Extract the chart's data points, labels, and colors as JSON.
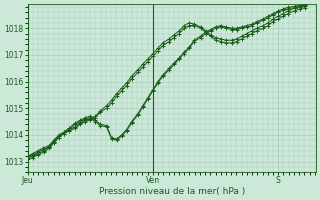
{
  "xlabel": "Pression niveau de la mer( hPa )",
  "bg_color": "#cce8d8",
  "plot_bg_color": "#cce8d8",
  "grid_color": "#aacabc",
  "line_color": "#1a5c1a",
  "ylim": [
    1012.6,
    1018.9
  ],
  "xlim_days": 2.3,
  "yticks": [
    1013,
    1014,
    1015,
    1016,
    1017,
    1018
  ],
  "xtick_labels": [
    "Jeu",
    "Ven",
    "S"
  ],
  "xtick_positions": [
    0,
    1.0,
    2.0
  ],
  "vline_positions": [
    0,
    1.0
  ],
  "series": [
    {
      "x": [
        0.0,
        0.04,
        0.08,
        0.12,
        0.17,
        0.21,
        0.25,
        0.29,
        0.33,
        0.38,
        0.42,
        0.46,
        0.5,
        0.54,
        0.58,
        0.63,
        0.67,
        0.71,
        0.75,
        0.79,
        0.83,
        0.88,
        0.92,
        0.96,
        1.0,
        1.04,
        1.08,
        1.13,
        1.17,
        1.21,
        1.25,
        1.29,
        1.33,
        1.38,
        1.42,
        1.46,
        1.5,
        1.54,
        1.58,
        1.63,
        1.67,
        1.71,
        1.75,
        1.79,
        1.83,
        1.88,
        1.92,
        1.96,
        2.0,
        2.04,
        2.08,
        2.13,
        2.17,
        2.21
      ],
      "y": [
        1013.2,
        1013.3,
        1013.4,
        1013.5,
        1013.6,
        1013.8,
        1014.0,
        1014.1,
        1014.2,
        1014.3,
        1014.45,
        1014.55,
        1014.6,
        1014.7,
        1014.9,
        1015.1,
        1015.3,
        1015.55,
        1015.75,
        1015.95,
        1016.2,
        1016.45,
        1016.65,
        1016.85,
        1017.05,
        1017.25,
        1017.45,
        1017.6,
        1017.75,
        1017.9,
        1018.1,
        1018.2,
        1018.15,
        1018.05,
        1017.9,
        1017.75,
        1017.65,
        1017.6,
        1017.55,
        1017.55,
        1017.6,
        1017.7,
        1017.8,
        1017.9,
        1018.0,
        1018.1,
        1018.2,
        1018.35,
        1018.45,
        1018.55,
        1018.65,
        1018.75,
        1018.82,
        1018.87
      ]
    },
    {
      "x": [
        0.0,
        0.04,
        0.08,
        0.12,
        0.17,
        0.21,
        0.25,
        0.29,
        0.33,
        0.38,
        0.42,
        0.46,
        0.5,
        0.54,
        0.58,
        0.63,
        0.67,
        0.71,
        0.75,
        0.79,
        0.83,
        0.88,
        0.92,
        0.96,
        1.0,
        1.04,
        1.08,
        1.13,
        1.17,
        1.21,
        1.25,
        1.29,
        1.33,
        1.38,
        1.42,
        1.46,
        1.5,
        1.54,
        1.58,
        1.63,
        1.67,
        1.71,
        1.75,
        1.79,
        1.83,
        1.88,
        1.92,
        1.96,
        2.0,
        2.04,
        2.08,
        2.13,
        2.17,
        2.21
      ],
      "y": [
        1013.2,
        1013.25,
        1013.35,
        1013.45,
        1013.55,
        1013.75,
        1013.95,
        1014.05,
        1014.15,
        1014.25,
        1014.4,
        1014.5,
        1014.55,
        1014.65,
        1014.85,
        1015.0,
        1015.2,
        1015.45,
        1015.65,
        1015.85,
        1016.1,
        1016.35,
        1016.55,
        1016.75,
        1016.95,
        1017.15,
        1017.35,
        1017.5,
        1017.65,
        1017.8,
        1018.0,
        1018.1,
        1018.1,
        1018.0,
        1017.85,
        1017.7,
        1017.55,
        1017.5,
        1017.45,
        1017.45,
        1017.5,
        1017.6,
        1017.7,
        1017.8,
        1017.9,
        1018.0,
        1018.1,
        1018.25,
        1018.35,
        1018.45,
        1018.55,
        1018.65,
        1018.72,
        1018.77
      ]
    },
    {
      "x": [
        0.0,
        0.04,
        0.08,
        0.13,
        0.17,
        0.21,
        0.25,
        0.29,
        0.33,
        0.38,
        0.42,
        0.46,
        0.5,
        0.54,
        0.58,
        0.63,
        0.67,
        0.71,
        0.75,
        0.79,
        0.83,
        0.88,
        0.92,
        0.96,
        1.0,
        1.04,
        1.08,
        1.13,
        1.17,
        1.21,
        1.25,
        1.29,
        1.33,
        1.38,
        1.42,
        1.46,
        1.5,
        1.54,
        1.58,
        1.63,
        1.67,
        1.71,
        1.75,
        1.79,
        1.83,
        1.88,
        1.92,
        1.96,
        2.0,
        2.04,
        2.08,
        2.13,
        2.17,
        2.21
      ],
      "y": [
        1013.15,
        1013.2,
        1013.3,
        1013.4,
        1013.55,
        1013.75,
        1013.95,
        1014.1,
        1014.25,
        1014.45,
        1014.55,
        1014.65,
        1014.7,
        1014.55,
        1014.4,
        1014.35,
        1013.9,
        1013.85,
        1014.0,
        1014.2,
        1014.5,
        1014.8,
        1015.1,
        1015.4,
        1015.7,
        1016.0,
        1016.25,
        1016.5,
        1016.7,
        1016.9,
        1017.1,
        1017.3,
        1017.55,
        1017.7,
        1017.85,
        1017.95,
        1018.05,
        1018.1,
        1018.05,
        1018.0,
        1018.0,
        1018.05,
        1018.1,
        1018.15,
        1018.25,
        1018.35,
        1018.45,
        1018.55,
        1018.65,
        1018.72,
        1018.78,
        1018.82,
        1018.85,
        1018.88
      ]
    },
    {
      "x": [
        0.0,
        0.04,
        0.08,
        0.13,
        0.17,
        0.21,
        0.25,
        0.29,
        0.33,
        0.38,
        0.42,
        0.46,
        0.5,
        0.54,
        0.58,
        0.63,
        0.67,
        0.71,
        0.75,
        0.79,
        0.83,
        0.88,
        0.92,
        0.96,
        1.0,
        1.04,
        1.08,
        1.13,
        1.17,
        1.21,
        1.25,
        1.29,
        1.33,
        1.38,
        1.42,
        1.46,
        1.5,
        1.54,
        1.58,
        1.63,
        1.67,
        1.71,
        1.75,
        1.79,
        1.83,
        1.88,
        1.92,
        1.96,
        2.0,
        2.04,
        2.08,
        2.13,
        2.17,
        2.21
      ],
      "y": [
        1013.1,
        1013.15,
        1013.25,
        1013.35,
        1013.5,
        1013.7,
        1013.9,
        1014.05,
        1014.2,
        1014.4,
        1014.5,
        1014.6,
        1014.65,
        1014.5,
        1014.35,
        1014.3,
        1013.85,
        1013.8,
        1013.95,
        1014.15,
        1014.45,
        1014.75,
        1015.05,
        1015.35,
        1015.65,
        1015.95,
        1016.2,
        1016.45,
        1016.65,
        1016.85,
        1017.05,
        1017.25,
        1017.5,
        1017.65,
        1017.8,
        1017.9,
        1018.0,
        1018.05,
        1018.0,
        1017.95,
        1017.95,
        1018.0,
        1018.05,
        1018.1,
        1018.2,
        1018.3,
        1018.4,
        1018.5,
        1018.6,
        1018.67,
        1018.73,
        1018.77,
        1018.8,
        1018.83
      ]
    }
  ]
}
